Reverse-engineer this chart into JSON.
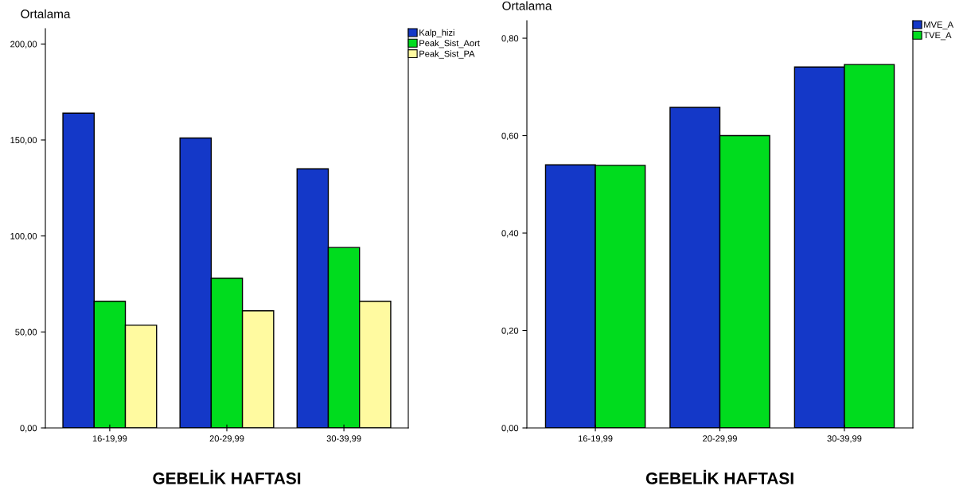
{
  "chart_data": [
    {
      "type": "bar",
      "xlabel": "GEBELİK HAFTASI",
      "ylabel": "Ortalama",
      "categories": [
        "16-19,99",
        "20-29,99",
        "30-39,99"
      ],
      "series": [
        {
          "name": "Kalp_hizi",
          "color": "#1438c8",
          "values": [
            164,
            151,
            135
          ]
        },
        {
          "name": "Peak_Sist_Aort",
          "color": "#00dc1e",
          "values": [
            66,
            78,
            94
          ]
        },
        {
          "name": "Peak_Sist_PA",
          "color": "#fffaa0",
          "values": [
            53.5,
            61,
            66
          ]
        }
      ],
      "ylim": [
        0,
        208
      ],
      "yticks": [
        {
          "value": 0,
          "label": "0,00"
        },
        {
          "value": 50,
          "label": "50,00"
        },
        {
          "value": 100,
          "label": "100,00"
        },
        {
          "value": 150,
          "label": "150,00"
        },
        {
          "value": 200,
          "label": "200,00"
        }
      ],
      "grid": false,
      "legend": "top right"
    },
    {
      "type": "bar",
      "xlabel": "GEBELİK HAFTASI",
      "ylabel": "Ortalama",
      "categories": [
        "16-19,99",
        "20-29,99",
        "30-39,99"
      ],
      "series": [
        {
          "name": "MVE_A",
          "color": "#1438c8",
          "values": [
            0.54,
            0.658,
            0.741
          ]
        },
        {
          "name": "TVE_A",
          "color": "#00dc1e",
          "values": [
            0.539,
            0.6,
            0.746
          ]
        }
      ],
      "ylim": [
        0,
        0.836
      ],
      "yticks": [
        {
          "value": 0,
          "label": "0,00"
        },
        {
          "value": 0.2,
          "label": "0,20"
        },
        {
          "value": 0.4,
          "label": "0,40"
        },
        {
          "value": 0.6,
          "label": "0,60"
        },
        {
          "value": 0.8,
          "label": "0,80"
        }
      ],
      "grid": false,
      "legend": "top right"
    }
  ]
}
